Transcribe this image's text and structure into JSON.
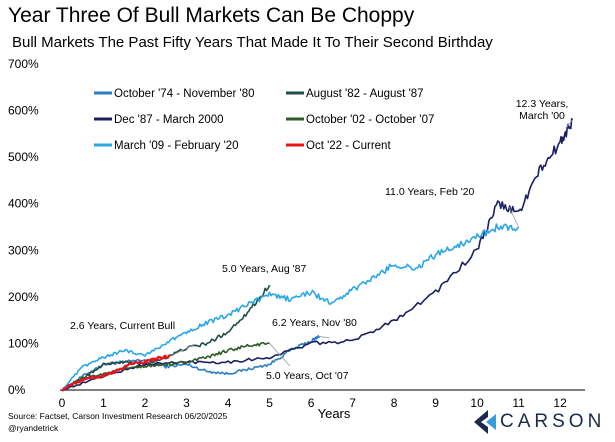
{
  "header": {
    "title": "Year Three Of Bull Markets Can Be Choppy",
    "subtitle": "Bull Markets The Past Fifty Years That Made It To Their Second Birthday"
  },
  "footer": {
    "source": "Source: Factset, Carson Investment Research 06/20/2025",
    "handle": "@ryandetrick",
    "brand": "CARSON"
  },
  "colors": {
    "logo_dark": "#1b2a4a",
    "logo_light": "#3a9bd9"
  },
  "chart_data": {
    "type": "line",
    "xlabel": "Years",
    "ylabel": "",
    "xlim": [
      0,
      12.6
    ],
    "ylim": [
      0,
      700
    ],
    "xticks": [
      0,
      1,
      2,
      3,
      4,
      5,
      6,
      7,
      8,
      9,
      10,
      11,
      12
    ],
    "yticks": [
      0,
      100,
      200,
      300,
      400,
      500,
      600,
      700
    ],
    "ytick_labels": [
      "0%",
      "100%",
      "200%",
      "300%",
      "400%",
      "500%",
      "600%",
      "700%"
    ],
    "legend_position": "top-left",
    "series": [
      {
        "name": "October '74 - November '80",
        "color": "#2a7fc4",
        "x": [
          0,
          0.5,
          1,
          1.5,
          2,
          2.5,
          3,
          3.5,
          4,
          4.5,
          5,
          5.5,
          6,
          6.2
        ],
        "y": [
          0,
          30,
          55,
          60,
          65,
          50,
          55,
          40,
          35,
          45,
          55,
          85,
          105,
          115
        ]
      },
      {
        "name": "August '82 - August '87",
        "color": "#1f4e4a",
        "x": [
          0,
          0.5,
          1,
          1.5,
          2,
          2.5,
          3,
          3.5,
          4,
          4.5,
          5
        ],
        "y": [
          0,
          25,
          55,
          60,
          55,
          70,
          90,
          100,
          125,
          170,
          225
        ]
      },
      {
        "name": "Dec '87 - March 2000",
        "color": "#1c2060",
        "x": [
          0,
          1,
          2,
          3,
          4,
          5,
          6,
          7,
          8,
          9,
          10,
          10.5,
          11,
          11.5,
          12,
          12.3
        ],
        "y": [
          0,
          30,
          55,
          60,
          60,
          70,
          100,
          105,
          150,
          210,
          300,
          400,
          380,
          470,
          530,
          580
        ]
      },
      {
        "name": "October '02 - October '07",
        "color": "#2d5a27",
        "x": [
          0,
          0.5,
          1,
          1.5,
          2,
          2.5,
          3,
          3.5,
          4,
          4.5,
          5
        ],
        "y": [
          0,
          25,
          35,
          45,
          50,
          55,
          60,
          70,
          85,
          95,
          100
        ]
      },
      {
        "name": "March '09 - February '20",
        "color": "#2aa7e8",
        "x": [
          0,
          0.5,
          1,
          1.5,
          2,
          2.5,
          3,
          3.5,
          4,
          4.5,
          5,
          5.5,
          6,
          6.5,
          7,
          7.5,
          8,
          8.5,
          9,
          9.5,
          10,
          10.5,
          11
        ],
        "y": [
          0,
          50,
          70,
          85,
          75,
          100,
          125,
          145,
          160,
          185,
          205,
          195,
          210,
          185,
          215,
          240,
          270,
          260,
          290,
          310,
          330,
          350,
          350
        ]
      },
      {
        "name": "Oct '22 - Current",
        "color": "#e8141b",
        "x": [
          0,
          0.3,
          0.6,
          1,
          1.3,
          1.6,
          2,
          2.3,
          2.6
        ],
        "y": [
          0,
          15,
          25,
          30,
          40,
          55,
          60,
          68,
          72
        ]
      }
    ],
    "annotations": [
      {
        "text_lines": [
          "12.3 Years,",
          "March '00"
        ],
        "x": 12.3,
        "y": 580
      },
      {
        "text_lines": [
          "11.0 Years, Feb '20"
        ],
        "x": 11.0,
        "y": 350
      },
      {
        "text_lines": [
          "5.0 Years, Aug '87"
        ],
        "x": 5.0,
        "y": 225
      },
      {
        "text_lines": [
          "6.2 Years, Nov '80"
        ],
        "x": 6.2,
        "y": 115
      },
      {
        "text_lines": [
          "2.6 Years, Current Bull"
        ],
        "x": 2.6,
        "y": 72
      },
      {
        "text_lines": [
          "5.0 Years, Oct '07"
        ],
        "x": 5.0,
        "y": 100
      }
    ]
  }
}
